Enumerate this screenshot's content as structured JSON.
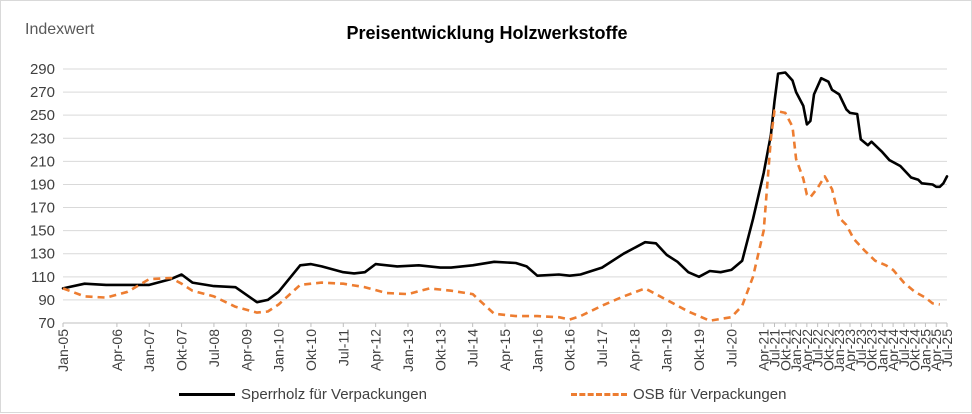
{
  "chart_data": {
    "type": "line",
    "title": "Preisentwicklung Holzwerkstoffe",
    "ylabel": "Indexwert",
    "xlabel": "",
    "ylim": [
      70,
      290
    ],
    "yticks": [
      70,
      90,
      110,
      130,
      150,
      170,
      190,
      210,
      230,
      250,
      270,
      290
    ],
    "grid": "horizontal",
    "legend": "bottom",
    "x_tick_labels": [
      "Jan-05",
      "Apr-06",
      "Jan-07",
      "Okt-07",
      "Jul-08",
      "Apr-09",
      "Jan-10",
      "Okt-10",
      "Jul-11",
      "Apr-12",
      "Jan-13",
      "Okt-13",
      "Jul-14",
      "Apr-15",
      "Jan-16",
      "Okt-16",
      "Jul-17",
      "Apr-18",
      "Jan-19",
      "Okt-19",
      "Jul-20",
      "Apr-21",
      "Jul-21",
      "Okt-21",
      "Jan-22",
      "Apr-22",
      "Jul-22",
      "Okt-22",
      "Jan-23",
      "Apr-23",
      "Jul-23",
      "Okt-23",
      "Jan-24",
      "Apr-24",
      "Jul-24",
      "Okt-24",
      "Jan-25",
      "Apr-25",
      "Jul-25"
    ],
    "x_start": "2005-01",
    "x_end": "2025-07",
    "series": [
      {
        "name": "Sperrholz für Verpackungen",
        "color": "#000000",
        "style": "solid",
        "points": [
          [
            "2005-01",
            100
          ],
          [
            "2005-07",
            104
          ],
          [
            "2006-01",
            103
          ],
          [
            "2006-07",
            103
          ],
          [
            "2007-01",
            103
          ],
          [
            "2007-07",
            108
          ],
          [
            "2007-10",
            112
          ],
          [
            "2008-01",
            105
          ],
          [
            "2008-07",
            102
          ],
          [
            "2009-01",
            101
          ],
          [
            "2009-07",
            88
          ],
          [
            "2009-10",
            90
          ],
          [
            "2010-01",
            97
          ],
          [
            "2010-07",
            120
          ],
          [
            "2010-10",
            121
          ],
          [
            "2011-01",
            119
          ],
          [
            "2011-07",
            114
          ],
          [
            "2011-10",
            113
          ],
          [
            "2012-01",
            114
          ],
          [
            "2012-04",
            121
          ],
          [
            "2012-10",
            119
          ],
          [
            "2013-04",
            120
          ],
          [
            "2013-10",
            118
          ],
          [
            "2014-01",
            118
          ],
          [
            "2014-07",
            120
          ],
          [
            "2015-01",
            123
          ],
          [
            "2015-07",
            122
          ],
          [
            "2015-10",
            119
          ],
          [
            "2016-01",
            111
          ],
          [
            "2016-07",
            112
          ],
          [
            "2016-10",
            111
          ],
          [
            "2017-01",
            112
          ],
          [
            "2017-07",
            118
          ],
          [
            "2018-01",
            130
          ],
          [
            "2018-07",
            140
          ],
          [
            "2018-10",
            139
          ],
          [
            "2019-01",
            129
          ],
          [
            "2019-04",
            123
          ],
          [
            "2019-07",
            114
          ],
          [
            "2019-10",
            110
          ],
          [
            "2020-01",
            115
          ],
          [
            "2020-04",
            114
          ],
          [
            "2020-07",
            116
          ],
          [
            "2020-10",
            124
          ],
          [
            "2021-01",
            160
          ],
          [
            "2021-04",
            200
          ],
          [
            "2021-06",
            233
          ],
          [
            "2021-07",
            262
          ],
          [
            "2021-08",
            286
          ],
          [
            "2021-10",
            287
          ],
          [
            "2021-12",
            280
          ],
          [
            "2022-01",
            270
          ],
          [
            "2022-03",
            258
          ],
          [
            "2022-04",
            242
          ],
          [
            "2022-05",
            245
          ],
          [
            "2022-06",
            268
          ],
          [
            "2022-08",
            282
          ],
          [
            "2022-10",
            279
          ],
          [
            "2022-11",
            272
          ],
          [
            "2023-01",
            268
          ],
          [
            "2023-03",
            255
          ],
          [
            "2023-04",
            252
          ],
          [
            "2023-06",
            251
          ],
          [
            "2023-07",
            229
          ],
          [
            "2023-09",
            224
          ],
          [
            "2023-10",
            227
          ],
          [
            "2024-01",
            218
          ],
          [
            "2024-03",
            211
          ],
          [
            "2024-06",
            206
          ],
          [
            "2024-09",
            196
          ],
          [
            "2024-11",
            194
          ],
          [
            "2024-12",
            191
          ],
          [
            "2025-03",
            190
          ],
          [
            "2025-04",
            188
          ],
          [
            "2025-05",
            188
          ],
          [
            "2025-06",
            191
          ],
          [
            "2025-07",
            197
          ]
        ]
      },
      {
        "name": "OSB für Verpackungen",
        "color": "#ED7D31",
        "style": "dashed",
        "points": [
          [
            "2005-01",
            100
          ],
          [
            "2005-07",
            93
          ],
          [
            "2006-01",
            92
          ],
          [
            "2006-07",
            97
          ],
          [
            "2007-01",
            108
          ],
          [
            "2007-07",
            109
          ],
          [
            "2007-10",
            104
          ],
          [
            "2008-01",
            98
          ],
          [
            "2008-07",
            93
          ],
          [
            "2009-01",
            84
          ],
          [
            "2009-07",
            79
          ],
          [
            "2009-10",
            80
          ],
          [
            "2010-01",
            86
          ],
          [
            "2010-07",
            103
          ],
          [
            "2011-01",
            105
          ],
          [
            "2011-07",
            104
          ],
          [
            "2012-01",
            101
          ],
          [
            "2012-07",
            96
          ],
          [
            "2013-01",
            95
          ],
          [
            "2013-07",
            100
          ],
          [
            "2014-01",
            98
          ],
          [
            "2014-07",
            95
          ],
          [
            "2015-01",
            78
          ],
          [
            "2015-07",
            76
          ],
          [
            "2016-01",
            76
          ],
          [
            "2016-07",
            75
          ],
          [
            "2016-10",
            73
          ],
          [
            "2017-01",
            76
          ],
          [
            "2017-07",
            85
          ],
          [
            "2018-01",
            93
          ],
          [
            "2018-07",
            100
          ],
          [
            "2019-01",
            90
          ],
          [
            "2019-07",
            80
          ],
          [
            "2020-01",
            72
          ],
          [
            "2020-07",
            75
          ],
          [
            "2020-10",
            85
          ],
          [
            "2021-01",
            110
          ],
          [
            "2021-04",
            150
          ],
          [
            "2021-06",
            230
          ],
          [
            "2021-07",
            254
          ],
          [
            "2021-10",
            252
          ],
          [
            "2021-12",
            240
          ],
          [
            "2022-01",
            212
          ],
          [
            "2022-03",
            195
          ],
          [
            "2022-04",
            181
          ],
          [
            "2022-05",
            179
          ],
          [
            "2022-07",
            187
          ],
          [
            "2022-09",
            197
          ],
          [
            "2022-11",
            186
          ],
          [
            "2023-01",
            161
          ],
          [
            "2023-03",
            155
          ],
          [
            "2023-05",
            143
          ],
          [
            "2023-08",
            133
          ],
          [
            "2023-11",
            124
          ],
          [
            "2024-02",
            120
          ],
          [
            "2024-04",
            116
          ],
          [
            "2024-07",
            105
          ],
          [
            "2024-10",
            97
          ],
          [
            "2025-01",
            92
          ],
          [
            "2025-03",
            87
          ],
          [
            "2025-05",
            86
          ]
        ]
      }
    ]
  }
}
